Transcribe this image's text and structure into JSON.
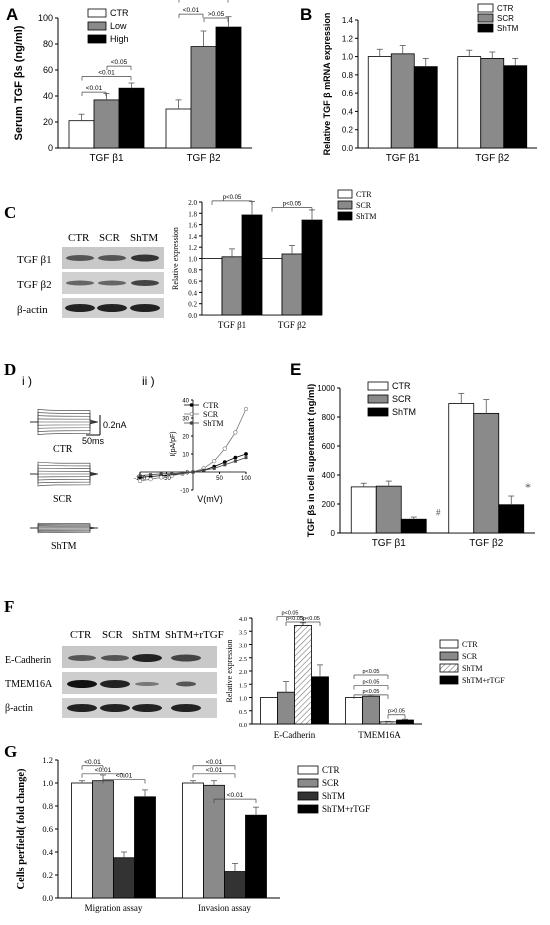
{
  "panels": {
    "A": {
      "label": "A",
      "chart_data": {
        "type": "bar",
        "ylabel": "Serum TGF βs (ng/ml)",
        "ylim": [
          0,
          100
        ],
        "yticks": [
          "0",
          "20",
          "40",
          "60",
          "80",
          "100"
        ],
        "categories": [
          "TGF β1",
          "TGF β2"
        ],
        "series": [
          {
            "name": "CTR",
            "values": [
              21,
              30
            ],
            "errors": [
              5,
              7
            ],
            "color": "#ffffff"
          },
          {
            "name": "Low",
            "values": [
              37,
              78
            ],
            "errors": [
              5,
              12
            ],
            "color": "#8a8a8a"
          },
          {
            "name": "High",
            "values": [
              46,
              93
            ],
            "errors": [
              4,
              8
            ],
            "color": "#000000"
          }
        ],
        "annotations": [
          "<0.01",
          "<0.01",
          "<0.05",
          "<0.01",
          "<0.01",
          ">0.05"
        ],
        "legend": "top-left"
      }
    },
    "B": {
      "label": "B",
      "chart_data": {
        "type": "bar",
        "ylabel": "Relative TGF β mRNA expression",
        "ylim": [
          0,
          1.4
        ],
        "yticks": [
          "0.0",
          "0.2",
          "0.4",
          "0.6",
          "0.8",
          "1.0",
          "1.2",
          "1.4"
        ],
        "categories": [
          "TGF β1",
          "TGF β2"
        ],
        "series": [
          {
            "name": "CTR",
            "values": [
              1.0,
              1.0
            ],
            "errors": [
              0.08,
              0.07
            ],
            "color": "#ffffff"
          },
          {
            "name": "SCR",
            "values": [
              1.03,
              0.98
            ],
            "errors": [
              0.09,
              0.07
            ],
            "color": "#8a8a8a"
          },
          {
            "name": "ShTM",
            "values": [
              0.89,
              0.9
            ],
            "errors": [
              0.09,
              0.08
            ],
            "color": "#000000"
          }
        ],
        "legend": "top-right"
      }
    },
    "C": {
      "label": "C",
      "blot": {
        "lanes": [
          "CTR",
          "SCR",
          "ShTM"
        ],
        "rows": [
          "TGF β1",
          "TGF β2",
          "β-actin"
        ]
      },
      "chart_data": {
        "type": "bar",
        "ylabel": "Relative expression",
        "ylim": [
          0,
          2.0
        ],
        "yticks": [
          "0.0",
          "0.2",
          "0.4",
          "0.6",
          "0.8",
          "1.0",
          "1.2",
          "1.4",
          "1.6",
          "1.8",
          "2.0"
        ],
        "categories": [
          "TGF β1",
          "TGF β2"
        ],
        "series": [
          {
            "name": "CTR",
            "values": [
              1.0,
              1.0
            ],
            "errors": [
              0,
              0
            ],
            "color": "#ffffff"
          },
          {
            "name": "SCR",
            "values": [
              1.03,
              1.08
            ],
            "errors": [
              0.14,
              0.15
            ],
            "color": "#8a8a8a"
          },
          {
            "name": "ShTM",
            "values": [
              1.77,
              1.68
            ],
            "errors": [
              0.24,
              0.18
            ],
            "color": "#000000"
          }
        ],
        "annotations": [
          "p<0.05",
          "p<0.05"
        ],
        "legend": "top-right"
      }
    },
    "D": {
      "label": "D",
      "sub_i": "i )",
      "sub_ii": "ii )",
      "traces": [
        "CTR",
        "SCR",
        "ShTM"
      ],
      "scalebar_y": "0.2nA",
      "scalebar_x": "50ms",
      "chart_data": {
        "type": "line",
        "xlabel": "V(mV)",
        "ylabel": "I(pA/pF)",
        "xlim": [
          -100,
          100
        ],
        "ylim": [
          -10,
          40
        ],
        "xticks": [
          "-100",
          "-50",
          "50",
          "100"
        ],
        "yticks": [
          "-10",
          "0",
          "10",
          "20",
          "30",
          "40"
        ],
        "x": [
          -100,
          -80,
          -60,
          -40,
          -20,
          0,
          20,
          40,
          60,
          80,
          100
        ],
        "series": [
          {
            "name": "CTR",
            "values": [
              -3,
              -2.5,
              -2,
              -1.5,
              -1,
              0,
              1,
              3,
              5.5,
              8,
              10
            ]
          },
          {
            "name": "SCR",
            "values": [
              -5,
              -4,
              -3,
              -2,
              -1,
              0,
              2,
              6,
              13,
              22,
              35
            ]
          },
          {
            "name": "ShTM",
            "values": [
              -2,
              -1.5,
              -1,
              -1,
              -0.5,
              0,
              1,
              2,
              4,
              6,
              8
            ]
          }
        ],
        "legend": "top-left"
      }
    },
    "E": {
      "label": "E",
      "chart_data": {
        "type": "bar",
        "ylabel": "TGF βs in cell supernatant (ng/ml)",
        "ylim": [
          0,
          1000
        ],
        "yticks": [
          "0",
          "200",
          "400",
          "600",
          "800",
          "1000"
        ],
        "categories": [
          "TGF β1",
          "TGF β2"
        ],
        "series": [
          {
            "name": "CTR",
            "values": [
              318,
              893
            ],
            "errors": [
              25,
              70
            ],
            "color": "#ffffff"
          },
          {
            "name": "SCR",
            "values": [
              323,
              825
            ],
            "errors": [
              35,
              95
            ],
            "color": "#8a8a8a"
          },
          {
            "name": "ShTM",
            "values": [
              95,
              195
            ],
            "errors": [
              15,
              60
            ],
            "color": "#000000"
          }
        ],
        "annotations": [
          "#",
          "*"
        ],
        "legend": "top-left"
      }
    },
    "F": {
      "label": "F",
      "blot": {
        "lanes": [
          "CTR",
          "SCR",
          "ShTM",
          "ShTM+rTGF"
        ],
        "rows": [
          "E-Cadherin",
          "TMEM16A",
          "β-actin"
        ]
      },
      "chart_data": {
        "type": "bar",
        "ylabel": "Relative expression",
        "ylim": [
          0,
          4.0
        ],
        "yticks": [
          "0.0",
          "0.5",
          "1.0",
          "1.5",
          "2.0",
          "2.5",
          "3.0",
          "3.5",
          "4.0"
        ],
        "categories": [
          "E-Cadherin",
          "TMEM16A"
        ],
        "series": [
          {
            "name": "CTR",
            "values": [
              1.0,
              1.0
            ],
            "errors": [
              0,
              0
            ],
            "color": "#ffffff"
          },
          {
            "name": "SCR",
            "values": [
              1.2,
              1.05
            ],
            "errors": [
              0.4,
              0.05
            ],
            "color": "#8a8a8a"
          },
          {
            "name": "ShTM",
            "values": [
              3.72,
              0.08
            ],
            "errors": [
              0.1,
              0.02
            ],
            "color": "#ffffff",
            "hatch": true
          },
          {
            "name": "ShTM+rTGF",
            "values": [
              1.78,
              0.15
            ],
            "errors": [
              0.45,
              0.03
            ],
            "color": "#000000"
          }
        ],
        "annotations": [
          "p<0.05",
          "p<0.05",
          "p<0.05",
          "p<0.05",
          "p<0.05",
          "p<0.05",
          "p>0.05"
        ],
        "legend": "top-right"
      }
    },
    "G": {
      "label": "G",
      "chart_data": {
        "type": "bar",
        "ylabel": "Cells perfield( fold change)",
        "ylim": [
          0,
          1.2
        ],
        "yticks": [
          "0.0",
          "0.2",
          "0.4",
          "0.6",
          "0.8",
          "1.0",
          "1.2"
        ],
        "categories": [
          "Migration assay",
          "Invasion assay"
        ],
        "series": [
          {
            "name": "CTR",
            "values": [
              1.0,
              1.0
            ],
            "errors": [
              0.02,
              0.02
            ],
            "color": "#ffffff"
          },
          {
            "name": "SCR",
            "values": [
              1.02,
              0.98
            ],
            "errors": [
              0.05,
              0.04
            ],
            "color": "#8a8a8a"
          },
          {
            "name": "ShTM",
            "values": [
              0.35,
              0.23
            ],
            "errors": [
              0.05,
              0.07
            ],
            "color": "#333333"
          },
          {
            "name": "ShTM+rTGF",
            "values": [
              0.88,
              0.72
            ],
            "errors": [
              0.06,
              0.07
            ],
            "color": "#000000"
          }
        ],
        "annotations": [
          "<0.01",
          "<0.01",
          "<0.01",
          "<0.01",
          "<0.01",
          "<0.01"
        ],
        "legend": "top-right"
      }
    }
  }
}
